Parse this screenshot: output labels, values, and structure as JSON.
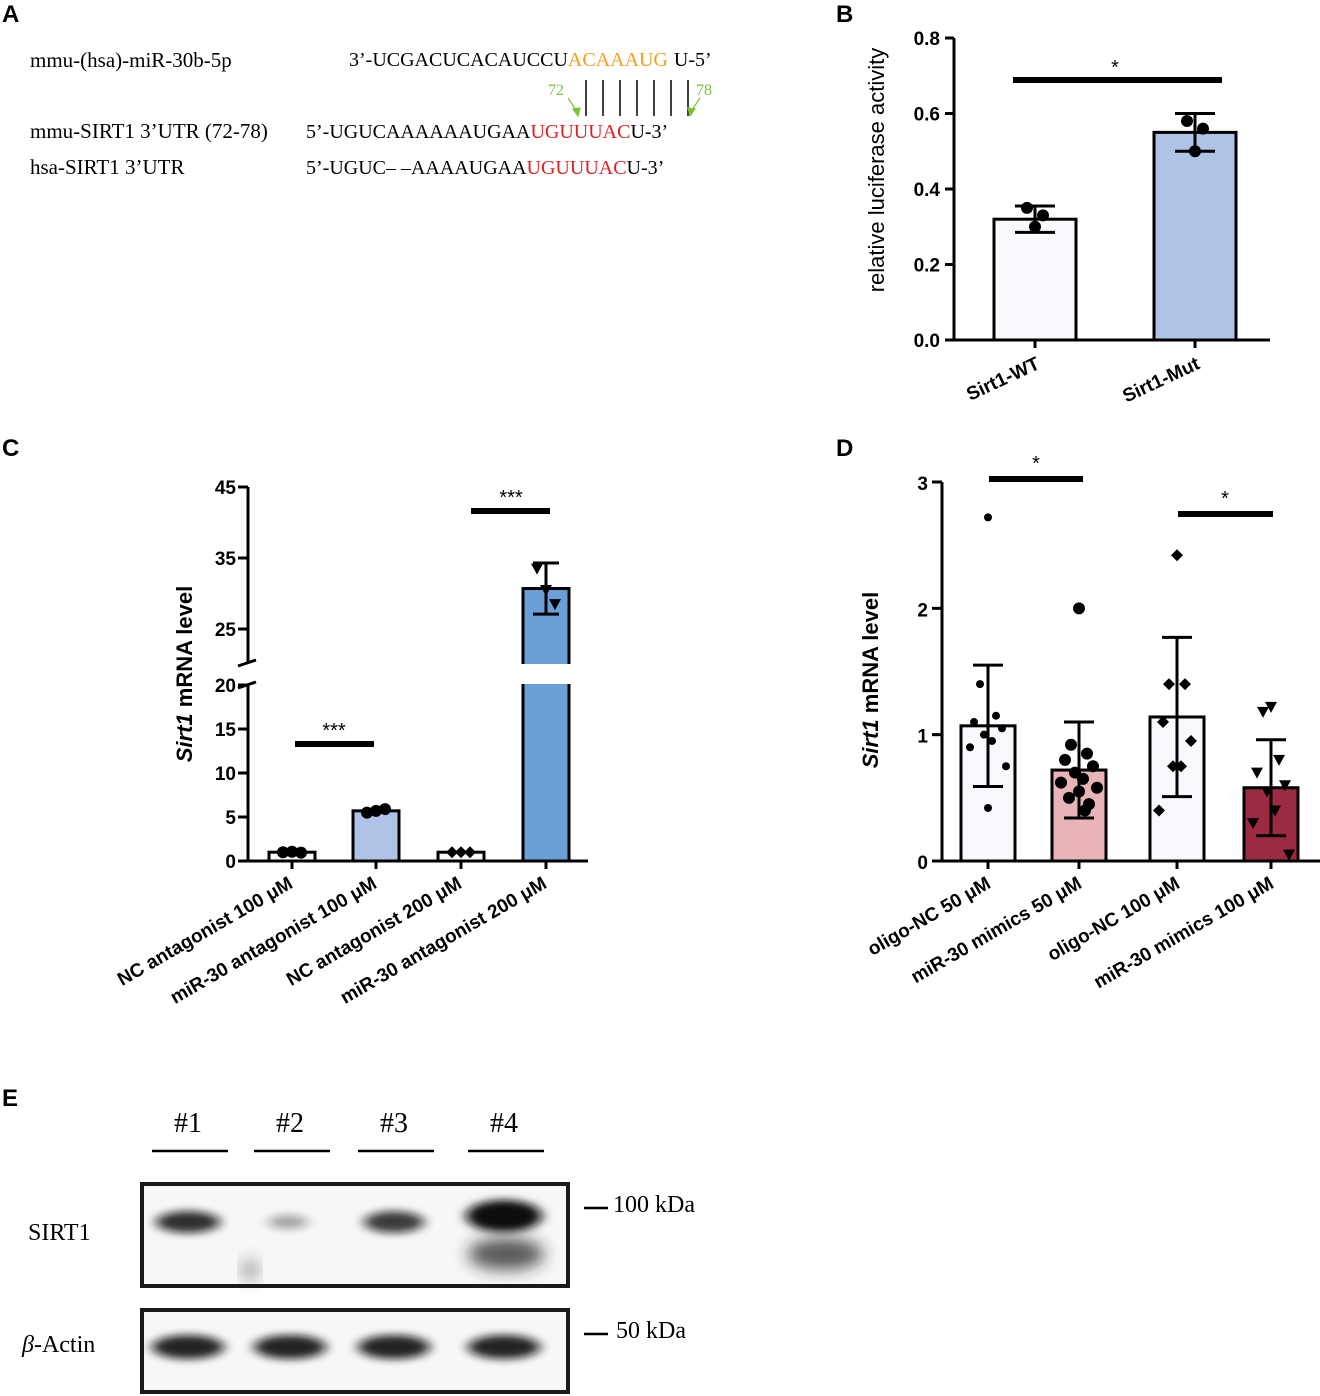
{
  "panel_labels": {
    "A": "A",
    "B": "B",
    "C": "C",
    "D": "D",
    "E": "E"
  },
  "colors": {
    "white_bar": "#f8f9fc",
    "light_blue_bar": "#aec3e6",
    "blue_bar": "#6a9fd8",
    "pink_bar": "#e8b4b8",
    "maroon_bar": "#9c2a42",
    "seed_orange": "#f0a020",
    "site_red": "#e02020",
    "position_green": "#7cc233"
  },
  "panel_a": {
    "mirna_name": "mmu-(hsa)-miR-30b-5p",
    "mirna_seq_prefix": "3’-UCGACUCACAUCCU",
    "mirna_seq_seed": "ACAAAUG",
    "mirna_seq_suffix": "U-5’",
    "pos_start": "72",
    "pos_end": "78",
    "mmu_name": "mmu-SIRT1 3’UTR (72-78)",
    "mmu_seq_prefix": "5’-UGUCAAAAAAUGAA",
    "mmu_seq_site": "UGUUUAC",
    "mmu_seq_suffix": "U-3’",
    "hsa_name": "hsa-SIRT1 3’UTR",
    "hsa_seq_prefix": "5’-UGUC– –AAAAUGAA",
    "hsa_seq_site": "UGUUUAC",
    "hsa_seq_suffix": "U-3’"
  },
  "chart_data": [
    {
      "panel": "B",
      "type": "bar",
      "ylabel": "relative luciferase activity",
      "ylim": [
        0,
        0.8
      ],
      "yticks": [
        "0.0",
        "0.2",
        "0.4",
        "0.6",
        "0.8"
      ],
      "categories": [
        "Sirt1-WT",
        "Sirt1-Mut"
      ],
      "values": [
        0.32,
        0.55
      ],
      "errors": [
        0.035,
        0.05
      ],
      "points": [
        [
          0.35,
          0.33,
          0.3
        ],
        [
          0.58,
          0.56,
          0.5
        ]
      ],
      "bar_colors": [
        "#f8f9fc",
        "#aec3e6"
      ],
      "significance": [
        {
          "from": 0,
          "to": 1,
          "label": "*"
        }
      ]
    },
    {
      "panel": "C",
      "type": "bar",
      "ylabel_italic": "Sirt1",
      "ylabel_rest": " mRNA level",
      "axis_break": [
        20,
        22
      ],
      "lower_ylim": [
        0,
        20
      ],
      "upper_ylim": [
        20,
        45
      ],
      "yticks": [
        "0",
        "5",
        "10",
        "15",
        "20",
        "25",
        "35",
        "45"
      ],
      "categories": [
        "NC antagonist 100 μM",
        "miR-30 antagonist 100 μM",
        "NC antagonist 200 μM",
        "miR-30 antagonist 200 μM"
      ],
      "values": [
        1.0,
        5.7,
        1.0,
        30.7
      ],
      "errors": [
        0.1,
        0.3,
        0.1,
        3.6
      ],
      "points": [
        [
          1.0,
          1.05,
          0.95
        ],
        [
          5.5,
          5.7,
          5.9
        ],
        [
          1.0,
          1.0,
          1.0
        ],
        [
          33.5,
          30.5,
          28.5
        ]
      ],
      "bar_colors": [
        "#f8f9fc",
        "#aec3e6",
        "#f8f9fc",
        "#6a9fd8"
      ],
      "significance": [
        {
          "from": 0,
          "to": 1,
          "label": "***"
        },
        {
          "from": 2,
          "to": 3,
          "label": "***"
        }
      ]
    },
    {
      "panel": "D",
      "type": "bar",
      "ylabel_italic": "Sirt1",
      "ylabel_rest": " mRNA level",
      "ylim": [
        0,
        3
      ],
      "yticks": [
        "0",
        "1",
        "2",
        "3"
      ],
      "categories": [
        "oligo-NC 50 μM",
        "miR-30 mimics 50 μM",
        "oligo-NC 100 μM",
        "miR-30 mimics 100 μM"
      ],
      "values": [
        1.07,
        0.72,
        1.14,
        0.58
      ],
      "errors": [
        0.48,
        0.38,
        0.63,
        0.38
      ],
      "points": [
        [
          2.72,
          1.4,
          1.15,
          1.1,
          1.05,
          1.0,
          0.95,
          0.9,
          0.75,
          0.42
        ],
        [
          2.0,
          0.92,
          0.85,
          0.8,
          0.75,
          0.7,
          0.65,
          0.62,
          0.58,
          0.55,
          0.5,
          0.45,
          0.4
        ],
        [
          2.42,
          1.4,
          1.4,
          1.1,
          0.95,
          0.75,
          0.75,
          0.4
        ],
        [
          1.22,
          1.18,
          0.8,
          0.7,
          0.6,
          0.55,
          0.4,
          0.3,
          0.05
        ]
      ],
      "markers": [
        "circle-small",
        "circle",
        "diamond",
        "triangle-down"
      ],
      "bar_colors": [
        "#f8f9fc",
        "#e8b4b8",
        "#f8f9fc",
        "#9c2a42"
      ],
      "significance": [
        {
          "from": 0,
          "to": 1,
          "label": "*"
        },
        {
          "from": 2,
          "to": 3,
          "label": "*"
        }
      ]
    }
  ],
  "panel_e": {
    "lanes": [
      "#1",
      "#2",
      "#3",
      "#4"
    ],
    "rows": [
      {
        "label": "SIRT1",
        "marker": "100 kDa",
        "intensities": [
          0.85,
          0.35,
          0.8,
          1.0
        ]
      },
      {
        "label_italic": "β",
        "label_rest": "-Actin",
        "marker": "50 kDa",
        "intensities": [
          0.9,
          0.9,
          0.9,
          0.9
        ]
      }
    ]
  }
}
